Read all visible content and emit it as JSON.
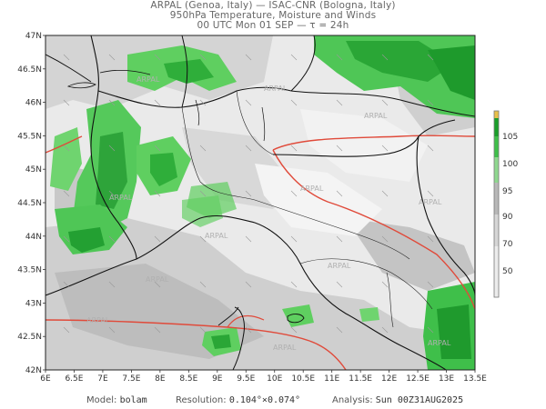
{
  "header": {
    "line1": "ARPAL (Genoa, Italy)  —  ISAC-CNR (Bologna, Italy)",
    "line2": "950hPa Temperature, Moisture and Winds",
    "line3": "00 UTC Mon 01 SEP  —  τ = 24h"
  },
  "map": {
    "lat_ticks": [
      "47N",
      "46.5N",
      "46N",
      "45.5N",
      "45N",
      "44.5N",
      "44N",
      "43.5N",
      "43N",
      "42.5N",
      "42N"
    ],
    "lon_ticks": [
      "6E",
      "6.5E",
      "7E",
      "7.5E",
      "8E",
      "8.5E",
      "9E",
      "9.5E",
      "10E",
      "10.5E",
      "11E",
      "11.5E",
      "12E",
      "12.5E",
      "13E",
      "13.5E"
    ],
    "watermark": "ARPAL",
    "extent": {
      "lon_min": 6,
      "lon_max": 13.5,
      "lat_min": 42,
      "lat_max": 47
    }
  },
  "colorbar": {
    "labels": [
      "105",
      "100",
      "95",
      "90",
      "70",
      "50"
    ],
    "colors": [
      "#e8c04a",
      "#1a9e2a",
      "#3fbf4a",
      "#8fd88f",
      "#b8b8b8",
      "#d6d6d6",
      "#ececec"
    ]
  },
  "footer": {
    "model_label": "Model:",
    "model_value": "bolam",
    "resolution_label": "Resolution:",
    "resolution_value": "0.104°×0.074°",
    "analysis_label": "Analysis:",
    "analysis_value": "Sun 00Z31AUG2025"
  }
}
